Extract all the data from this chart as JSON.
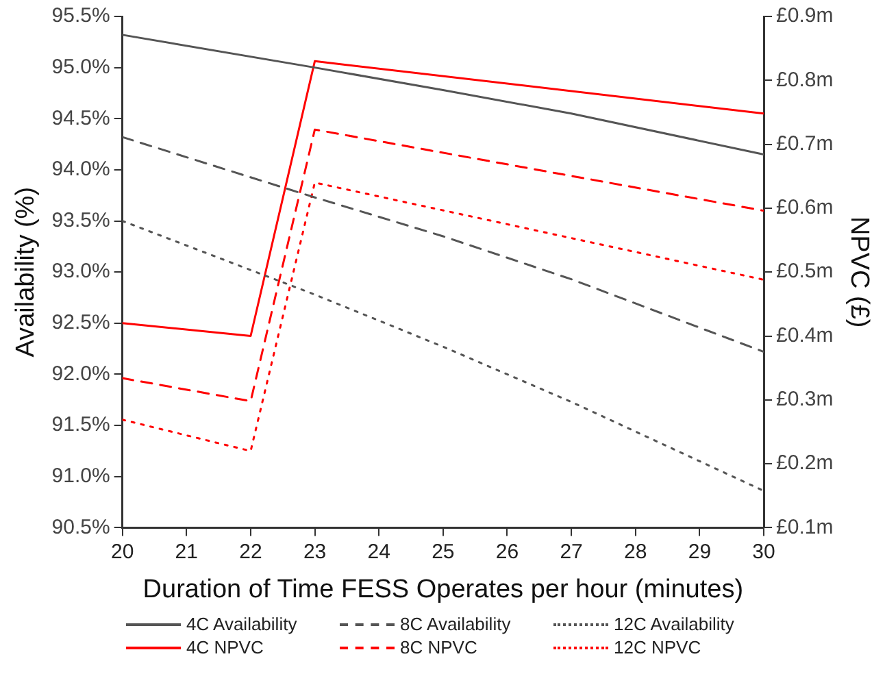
{
  "chart_data": {
    "type": "line",
    "xlabel": "Duration of Time FESS Operates per hour (minutes)",
    "ylabel": "Availability (%)",
    "y2label": "NPVC (£)",
    "xlim": [
      20,
      30
    ],
    "xticks": [
      20,
      21,
      22,
      23,
      24,
      25,
      26,
      27,
      28,
      29,
      30
    ],
    "ylim": [
      90.5,
      95.5
    ],
    "yticks": [
      {
        "value": 90.5,
        "label": "90.5%"
      },
      {
        "value": 91,
        "label": "91.0%"
      },
      {
        "value": 91.5,
        "label": "91.5%"
      },
      {
        "value": 92,
        "label": "92.0%"
      },
      {
        "value": 92.5,
        "label": "92.5%"
      },
      {
        "value": 93,
        "label": "93.0%"
      },
      {
        "value": 93.5,
        "label": "93.5%"
      },
      {
        "value": 94,
        "label": "94.0%"
      },
      {
        "value": 94.5,
        "label": "94.5%"
      },
      {
        "value": 95,
        "label": "95.0%"
      },
      {
        "value": 95.5,
        "label": "95.5%"
      }
    ],
    "y2lim": [
      0.1,
      0.9
    ],
    "y2ticks": [
      {
        "value": 0.1,
        "label": "£0.1m"
      },
      {
        "value": 0.2,
        "label": "£0.2m"
      },
      {
        "value": 0.3,
        "label": "£0.3m"
      },
      {
        "value": 0.4,
        "label": "£0.4m"
      },
      {
        "value": 0.5,
        "label": "£0.5m"
      },
      {
        "value": 0.6,
        "label": "£0.6m"
      },
      {
        "value": 0.7,
        "label": "£0.7m"
      },
      {
        "value": 0.8,
        "label": "£0.8m"
      },
      {
        "value": 0.9,
        "label": "£0.9m"
      }
    ],
    "grid": false,
    "legend": "bottom",
    "marker": "none",
    "series": [
      {
        "name": "4C Availability",
        "color": "#555555",
        "line_style": "solid",
        "x": [
          20,
          23,
          25,
          27,
          30
        ],
        "values": [
          95.32,
          95.0,
          94.78,
          94.55,
          94.15
        ]
      },
      {
        "name": "8C Availability",
        "color": "#555555",
        "line_style": "dashed",
        "x": [
          20,
          23,
          25,
          27,
          30
        ],
        "values": [
          94.32,
          93.73,
          93.35,
          92.93,
          92.22
        ]
      },
      {
        "name": "12C Availability",
        "color": "#555555",
        "line_style": "dotted",
        "x": [
          20,
          23,
          25,
          27,
          30
        ],
        "values": [
          93.5,
          92.78,
          92.27,
          91.73,
          90.86
        ]
      },
      {
        "name": "4C NPVC",
        "color": "#ff0000",
        "line_style": "solid",
        "axis": "y2",
        "x": [
          20,
          22,
          23,
          30
        ],
        "values": [
          0.42,
          0.4,
          0.83,
          0.748
        ]
      },
      {
        "name": "8C NPVC",
        "color": "#ff0000",
        "line_style": "dashed",
        "axis": "y2",
        "x": [
          20,
          22,
          23,
          30
        ],
        "values": [
          0.334,
          0.298,
          0.723,
          0.596
        ]
      },
      {
        "name": "12C NPVC",
        "color": "#ff0000",
        "line_style": "dotted",
        "axis": "y2",
        "x": [
          20,
          22,
          23,
          30
        ],
        "values": [
          0.269,
          0.22,
          0.64,
          0.488
        ]
      }
    ]
  }
}
